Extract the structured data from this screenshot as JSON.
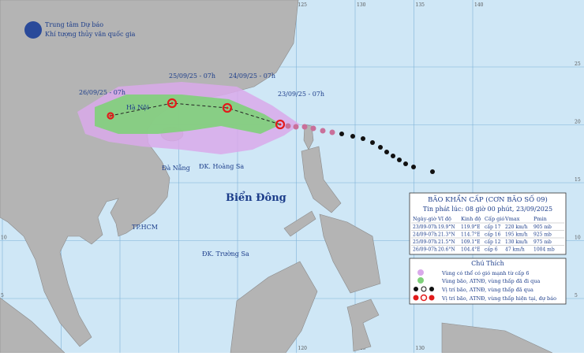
{
  "header": {
    "line1": "Trung tâm Dự báo",
    "line2": "Khí tượng thủy văn quốc gia"
  },
  "grid_labels": {
    "top": [
      "100",
      "105",
      "110",
      "115",
      "120",
      "125",
      "130",
      "135",
      "140"
    ],
    "left": [
      "25",
      "20",
      "15",
      "10",
      "5"
    ],
    "right": [
      "25",
      "20",
      "15",
      "10",
      "5"
    ],
    "bottom": [
      "120",
      "125",
      "130",
      "135"
    ]
  },
  "forecast_labels": [
    "26/09/25 - 07h",
    "25/09/25 - 07h",
    "24/09/25 - 07h",
    "23/09/25 - 07h"
  ],
  "places": [
    "Hà Nội",
    "Đà Nẵng",
    "ĐK. Hoàng Sa",
    "Biển Đông",
    "TP.HCM",
    "ĐK. Trường Sa"
  ],
  "info_box": {
    "title": "BÃO KHẨN CẤP   (CƠN BÃO SỐ 09)",
    "issued": "Tin phát lúc: 08 giờ 00 phút, 23/09/2025",
    "columns": [
      "Ngày-giờ",
      "Vĩ độ",
      "Kinh độ",
      "Cấp gió",
      "Vmax",
      "Pmin"
    ],
    "rows": [
      [
        "23/09-07h",
        "19.9°N",
        "119.9°E",
        "cấp 17",
        "220 km/h",
        "905 mb"
      ],
      [
        "24/09-07h",
        "21.3°N",
        "114.7°E",
        "cấp 16",
        "195 km/h",
        "925 mb"
      ],
      [
        "25/09-07h",
        "21.5°N",
        "109.1°E",
        "cấp 12",
        "130 km/h",
        "975 mb"
      ],
      [
        "26/09-07h",
        "20.6°N",
        "104.4°E",
        "cấp 6",
        "47 km/h",
        "1004 mb"
      ]
    ]
  },
  "legend": {
    "title": "Chú Thích",
    "items": [
      "Vùng có thể có gió mạnh từ cấp 6",
      "Vùng bão, ATNĐ, vùng thấp đã đi qua",
      "Vị trí bão, ATNĐ, vùng thấp đã qua",
      "Vị trí bão, ATNĐ, vùng thấp hiện tại, dự báo"
    ]
  }
}
